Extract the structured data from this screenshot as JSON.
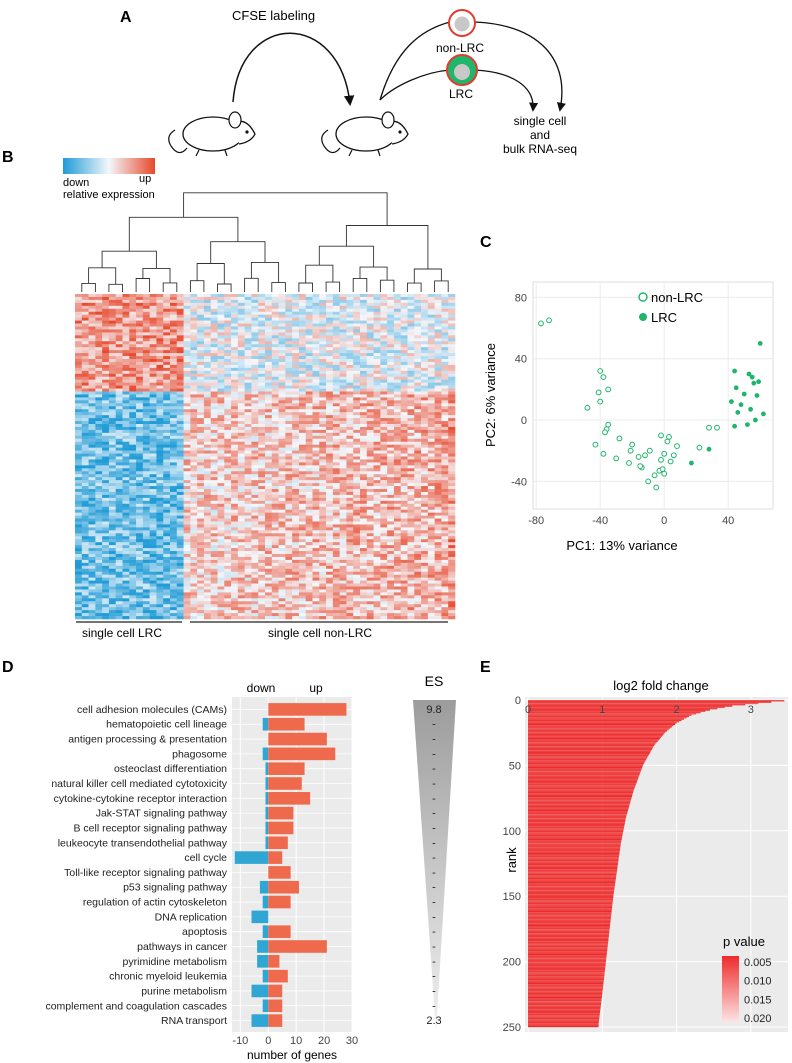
{
  "panel_a": {
    "label": "A",
    "cfse": "CFSE labeling",
    "non_lrc": "non-LRC",
    "lrc": "LRC",
    "out_line1": "single cell",
    "out_line2": "and",
    "out_line3": "bulk RNA-seq"
  },
  "panel_b": {
    "label": "B",
    "legend_down": "down",
    "legend_up": "up",
    "legend_title": "relative expression",
    "group_lrc": "single cell LRC",
    "group_nonlrc": "single cell non-LRC",
    "colors": {
      "low": "#1f9bd6",
      "mid": "#f4f7fb",
      "high": "#e8482c"
    }
  },
  "panel_c": {
    "label": "C",
    "legend_nonlrc": "non-LRC",
    "legend_lrc": "LRC",
    "marker_color": "#1fb56b",
    "chart_data": {
      "type": "scatter",
      "xlabel": "PC1: 13% variance",
      "ylabel": "PC2: 6% variance",
      "xlim": [
        -82,
        68
      ],
      "ylim": [
        -58,
        90
      ],
      "xticks": [
        "-80",
        "-40",
        "0",
        "40"
      ],
      "xtick_values": [
        -80,
        -40,
        0,
        40
      ],
      "yticks": [
        "80",
        "40",
        "0",
        "-40"
      ],
      "ytick_values": [
        80,
        40,
        0,
        -40
      ],
      "series": [
        {
          "name": "non-LRC",
          "filled": false,
          "x": [
            -77,
            -72,
            -40,
            -38,
            -35,
            -36,
            -41,
            -40,
            -37,
            -35,
            -48,
            -43,
            -38,
            -30,
            -28,
            -21,
            -22,
            -20,
            -16,
            -14,
            -12,
            -9,
            -6,
            -3,
            -2,
            0,
            2,
            4,
            6,
            8,
            -5,
            -10,
            -15,
            -2,
            0,
            3,
            -1,
            22,
            28,
            33
          ],
          "y": [
            63,
            65,
            32,
            28,
            20,
            -6,
            18,
            12,
            -8,
            -3,
            8,
            -16,
            -22,
            -25,
            -12,
            -20,
            -28,
            -16,
            -24,
            -31,
            -23,
            -20,
            -36,
            -33,
            -10,
            -22,
            -14,
            -27,
            -23,
            -17,
            -44,
            -40,
            -30,
            -26,
            -35,
            -11,
            -32,
            -18,
            -5,
            -5
          ]
        },
        {
          "name": "LRC",
          "filled": true,
          "x": [
            60,
            44,
            53,
            55,
            59,
            45,
            50,
            58,
            42,
            48,
            54,
            62,
            46,
            52,
            56,
            57,
            44,
            28,
            17
          ],
          "y": [
            50,
            32,
            30,
            28,
            25,
            21,
            17,
            16,
            12,
            10,
            7,
            4,
            5,
            -3,
            24,
            0,
            -4,
            -19,
            -28
          ]
        }
      ]
    }
  },
  "panel_d": {
    "label": "D",
    "es_label": "ES",
    "es_values": [
      "9.8",
      "-",
      "-",
      "-",
      "-",
      "-",
      "-",
      "-",
      "-",
      "-",
      "-",
      "-",
      "-",
      "-",
      "-",
      "-",
      "-",
      "-",
      "-",
      "-",
      "-",
      "2.3"
    ],
    "down_color": "#2fa6d3",
    "up_color": "#ef6a4c",
    "chart_data": {
      "type": "bar",
      "orientation": "horizontal-diverging",
      "xlabel": "number of genes",
      "header_down": "down",
      "header_up": "up",
      "xlim": [
        -13,
        30
      ],
      "xticks": [
        "-10",
        "0",
        "10",
        "20",
        "30"
      ],
      "xtick_values": [
        -10,
        0,
        10,
        20,
        30
      ],
      "categories": [
        "cell adhesion molecules (CAMs)",
        "hematopoietic cell lineage",
        "antigen processing & presentation",
        "phagosome",
        "osteoclast differentiation",
        "natural killer cell mediated cytotoxicity",
        "cytokine-cytokine receptor interaction",
        "Jak-STAT signaling pathway",
        "B cell receptor signaling pathway",
        "leukeocyte transendothelial pathway",
        "cell cycle",
        "Toll-like receptor signaling pathway",
        "p53 signaling pathway",
        "regulation of actin cytoskeleton",
        "DNA replication",
        "apoptosis",
        "pathways in cancer",
        "pyrimidine metabolism",
        "chronic myeloid leukemia",
        "purine metabolism",
        "complement and coagulation cascades",
        "RNA transport"
      ],
      "series": [
        {
          "name": "down",
          "values": [
            0,
            -2,
            0,
            -2,
            -1,
            -1,
            -1,
            -1,
            -1,
            -1,
            -12,
            0,
            -3,
            -2,
            -6,
            -2,
            -4,
            -4,
            -2,
            -6,
            -2,
            -6
          ]
        },
        {
          "name": "up",
          "values": [
            28,
            13,
            21,
            24,
            13,
            12,
            15,
            9,
            9,
            7,
            5,
            8,
            11,
            8,
            0,
            8,
            21,
            4,
            7,
            5,
            5,
            5
          ]
        }
      ]
    }
  },
  "panel_e": {
    "label": "E",
    "legend_title": "p value",
    "legend_ticks": [
      "0.005",
      "0.010",
      "0.015",
      "0.020"
    ],
    "legend_tick_values": [
      0.005,
      0.01,
      0.015,
      0.02
    ],
    "bar_color": "#ee2b2b",
    "chart_data": {
      "type": "bar",
      "orientation": "horizontal",
      "xlabel": "log2 fold change",
      "ylabel": "rank",
      "xlim": [
        0,
        3.5
      ],
      "ylim": [
        0,
        250
      ],
      "xticks": [
        "0",
        "1",
        "2",
        "3"
      ],
      "xtick_values": [
        0,
        1,
        2,
        3
      ],
      "yticks": [
        "0",
        "50",
        "100",
        "150",
        "200",
        "250"
      ],
      "ytick_values": [
        0,
        50,
        100,
        150,
        200,
        250
      ],
      "n_bars": 250,
      "curve_rank": [
        1,
        3,
        5,
        8,
        12,
        18,
        25,
        35,
        50,
        70,
        90,
        110,
        130,
        150,
        175,
        200,
        225,
        248
      ],
      "curve_log2fc": [
        3.45,
        3.1,
        2.75,
        2.45,
        2.2,
        2.0,
        1.85,
        1.7,
        1.55,
        1.42,
        1.32,
        1.25,
        1.2,
        1.15,
        1.1,
        1.05,
        1.0,
        0.95
      ]
    }
  }
}
